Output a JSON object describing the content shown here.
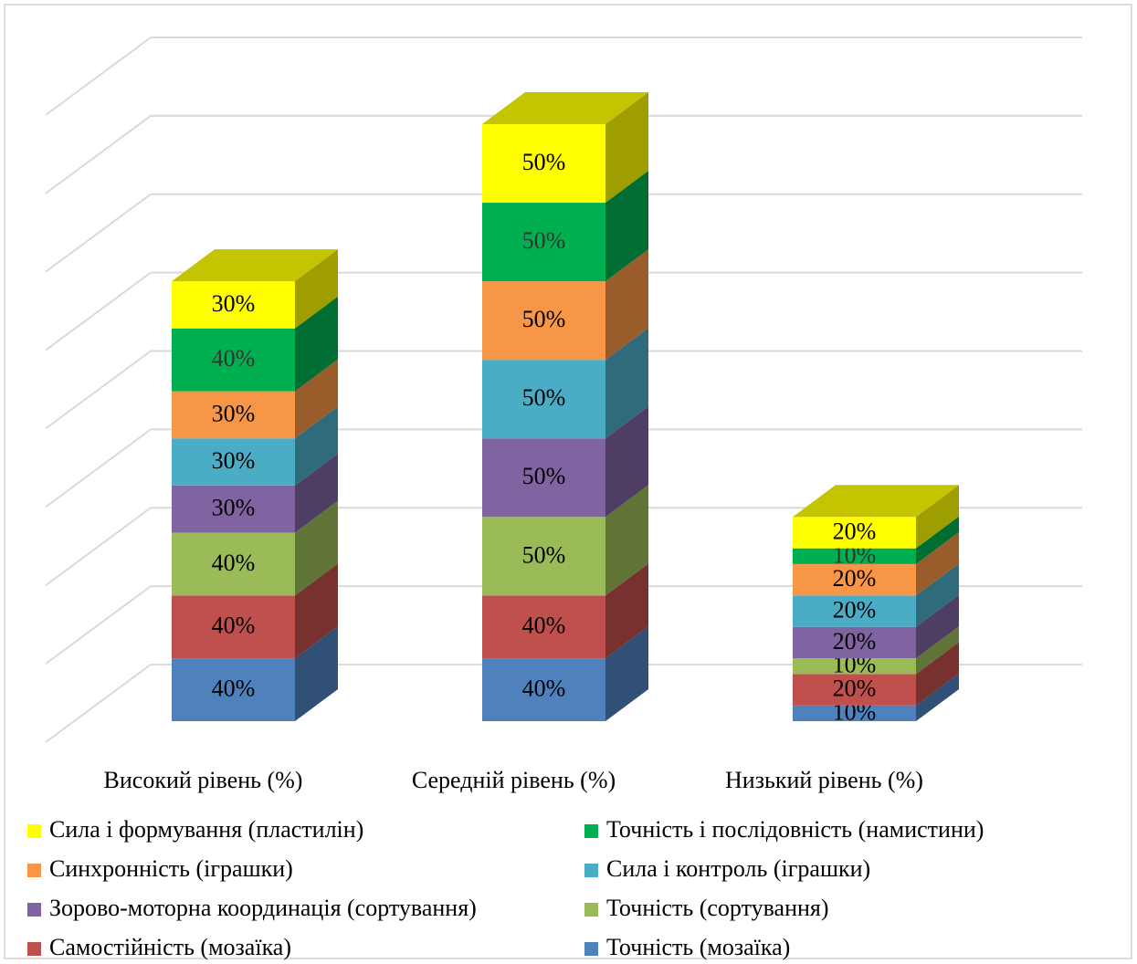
{
  "chart_data": {
    "type": "bar3d_stacked",
    "categories": [
      "Високий рівень (%)",
      "Середній рівень (%)",
      "Низький рівень (%)"
    ],
    "series": [
      {
        "name": "Точність (мозаїка)",
        "color": "#4f81bd",
        "values": [
          40,
          40,
          10
        ],
        "value_labels": [
          "40%",
          "40%",
          "10%"
        ]
      },
      {
        "name": "Самостійність (мозаїка)",
        "color": "#c0504d",
        "values": [
          40,
          40,
          20
        ],
        "value_labels": [
          "40%",
          "40%",
          "20%"
        ]
      },
      {
        "name": "Точність (сортування)",
        "color": "#9bbb59",
        "values": [
          40,
          50,
          10
        ],
        "value_labels": [
          "40%",
          "50%",
          "10%"
        ]
      },
      {
        "name": "Зорово-моторна координація (сортування)",
        "color": "#8064a2",
        "values": [
          30,
          50,
          20
        ],
        "value_labels": [
          "30%",
          "50%",
          "20%"
        ]
      },
      {
        "name": "Сила і контроль (іграшки)",
        "color": "#4bacc6",
        "values": [
          30,
          50,
          20
        ],
        "value_labels": [
          "30%",
          "50%",
          "20%"
        ]
      },
      {
        "name": "Синхронність (іграшки)",
        "color": "#f79646",
        "values": [
          30,
          50,
          20
        ],
        "value_labels": [
          "30%",
          "50%",
          "20%"
        ]
      },
      {
        "name": "Точність і послідовність (намистини)",
        "color": "#00b050",
        "values": [
          40,
          50,
          10
        ],
        "value_labels": [
          "40%",
          "50%",
          "10%"
        ]
      },
      {
        "name": "Сила і формування (пластилін)",
        "color": "#ffff00",
        "values": [
          30,
          50,
          20
        ],
        "value_labels": [
          "30%",
          "50%",
          "20%"
        ]
      }
    ],
    "ylim": [
      0,
      400
    ],
    "yticks": [
      0,
      50,
      100,
      150,
      200,
      250,
      300,
      350,
      400
    ],
    "grid": true
  }
}
